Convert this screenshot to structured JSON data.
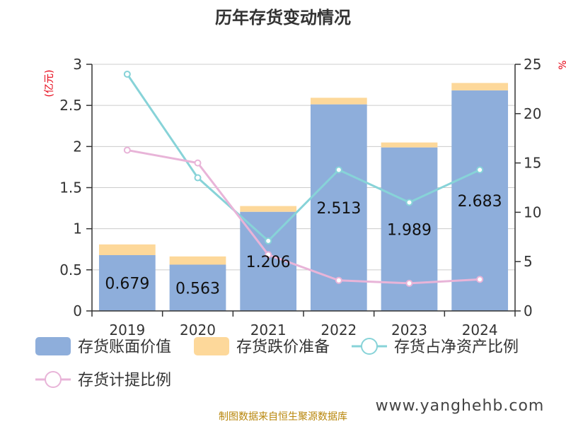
{
  "chart_data": {
    "type": "bar",
    "title": "历年存货变动情况",
    "categories": [
      "2019",
      "2020",
      "2021",
      "2022",
      "2023",
      "2024"
    ],
    "left_axis": {
      "label": "(亿元)",
      "min": 0,
      "max": 3,
      "ticks": [
        "0",
        "0.5",
        "1",
        "1.5",
        "2",
        "2.5",
        "3"
      ]
    },
    "right_axis": {
      "label": "%",
      "min": 0,
      "max": 25,
      "ticks": [
        "0",
        "5",
        "10",
        "15",
        "20",
        "25"
      ]
    },
    "series": [
      {
        "name": "存货账面价值",
        "type": "bar",
        "stack": "inv",
        "axis": "left",
        "color": "#8eaedb",
        "values": [
          0.679,
          0.563,
          1.206,
          2.513,
          1.989,
          2.683
        ],
        "labels": [
          "0.679",
          "0.563",
          "1.206",
          "2.513",
          "1.989",
          "2.683"
        ]
      },
      {
        "name": "存货跌价准备",
        "type": "bar",
        "stack": "inv",
        "axis": "left",
        "color": "#fdd89a",
        "values": [
          0.13,
          0.1,
          0.07,
          0.08,
          0.06,
          0.09
        ]
      },
      {
        "name": "存货占净资产比例",
        "type": "line",
        "axis": "right",
        "color": "#87d3d8",
        "values": [
          24.0,
          13.5,
          7.1,
          14.3,
          11.0,
          14.3
        ]
      },
      {
        "name": "存货计提比例",
        "type": "line",
        "axis": "right",
        "color": "#e8b4d8",
        "values": [
          16.3,
          15.0,
          5.7,
          3.1,
          2.8,
          3.2
        ]
      }
    ],
    "legend_position": "bottom"
  },
  "footer": {
    "source": "制图数据来自恒生聚源数据库",
    "watermark": "www.yanghehb.com"
  }
}
